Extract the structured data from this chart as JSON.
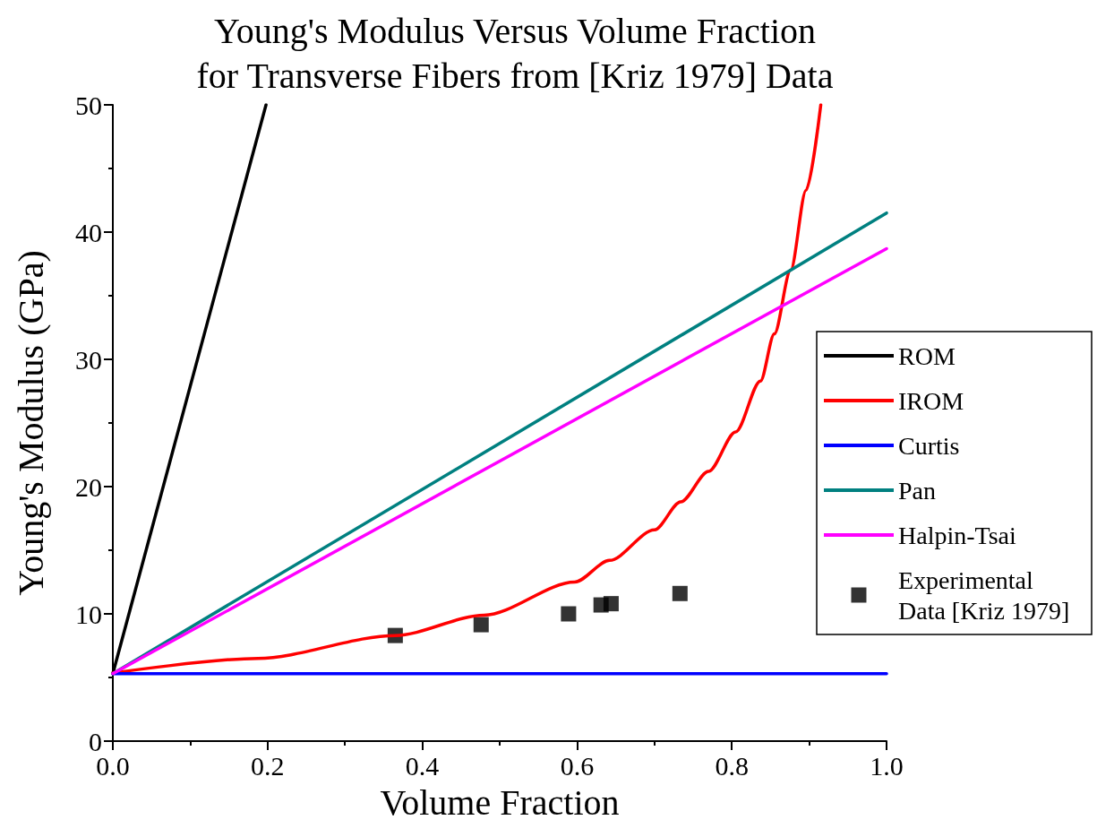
{
  "chart_data": {
    "type": "line",
    "title": "Young's Modulus Versus Volume Fraction\nfor Transverse Fibers from [Kriz 1979] Data",
    "xlabel": "Volume Fraction",
    "ylabel": "Young's Modulus (GPa)",
    "xlim": [
      0,
      1
    ],
    "xticks": [
      {
        "value": 0,
        "label": "0.0"
      },
      0.2,
      0.4,
      0.6,
      0.8,
      {
        "value": 1,
        "label": "1.0"
      }
    ],
    "ylim": [
      0,
      50
    ],
    "yticks": [
      0,
      10,
      20,
      30,
      40,
      50
    ],
    "grid": false,
    "legend": "right",
    "marker": "none",
    "line_style": "solid",
    "series": [
      {
        "name": "ROM",
        "color": "#000000",
        "x": [
          0,
          0.198
        ],
        "values": [
          5.3,
          50
        ]
      },
      {
        "name": "IROM",
        "color": "#ff0000",
        "x": [
          0,
          0.1875,
          0.365,
          0.48,
          0.597,
          0.642,
          0.7,
          0.734,
          0.77,
          0.805,
          0.837,
          0.855,
          0.876,
          0.896,
          0.915
        ],
        "values": [
          5.35,
          6.5,
          8.3,
          9.9,
          12.5,
          14.2,
          16.6,
          18.8,
          21.2,
          24.3,
          28.3,
          32,
          37,
          43.3,
          50
        ]
      },
      {
        "name": "Curtis",
        "color": "#0000ff",
        "x": [
          0,
          1
        ],
        "values": [
          5.3,
          5.3
        ]
      },
      {
        "name": "Pan",
        "color": "#008080",
        "x": [
          0,
          1
        ],
        "values": [
          5.3,
          41.5
        ]
      },
      {
        "name": "Halpin-Tsai",
        "color": "#ff00ff",
        "x": [
          0,
          1
        ],
        "values": [
          5.3,
          38.7
        ]
      },
      {
        "name": "Experimental Data [Kriz 1979]",
        "type": "scatter",
        "marker": "square",
        "color": "#000000",
        "x": [
          0.365,
          0.476,
          0.589,
          0.631,
          0.644,
          0.733
        ],
        "values": [
          8.3,
          9.15,
          10.0,
          10.7,
          10.8,
          11.6
        ]
      }
    ]
  }
}
